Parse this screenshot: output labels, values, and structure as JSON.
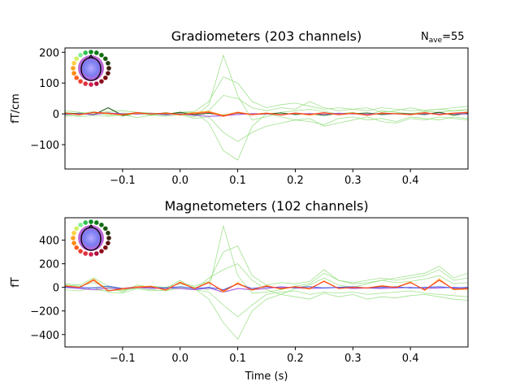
{
  "nave": {
    "label": "N",
    "sub": "ave",
    "value": "=55"
  },
  "colors": {
    "green": "#90dd7a",
    "red": "#ff3b1f",
    "orange": "#ff9a1a",
    "purple": "#a050e0",
    "darkgreen": "#1a5a10",
    "darkred": "#5a1010",
    "blue": "#4060e0"
  },
  "chart_data": [
    {
      "type": "line",
      "title": "Gradiometers (203 channels)",
      "xlabel": "",
      "ylabel": "fT/cm",
      "xlim": [
        -0.2,
        0.5
      ],
      "ylim": [
        -179,
        214
      ],
      "xticks": [
        -0.1,
        0.0,
        0.1,
        0.2,
        0.3,
        0.4
      ],
      "xtick_labels": [
        "−0.1",
        "0.0",
        "0.1",
        "0.2",
        "0.3",
        "0.4"
      ],
      "yticks": [
        -100,
        0,
        100,
        200
      ],
      "ytick_labels": [
        "−100",
        "0",
        "100",
        "200"
      ],
      "grid": false,
      "x": [
        -0.2,
        -0.175,
        -0.15,
        -0.125,
        -0.1,
        -0.075,
        -0.05,
        -0.025,
        0,
        0.025,
        0.05,
        0.075,
        0.1,
        0.125,
        0.15,
        0.175,
        0.2,
        0.225,
        0.25,
        0.275,
        0.3,
        0.325,
        0.35,
        0.375,
        0.4,
        0.425,
        0.45,
        0.475,
        0.5
      ],
      "series": [
        {
          "color": "green",
          "values": [
            5,
            0,
            8,
            -5,
            3,
            0,
            -4,
            2,
            0,
            -10,
            30,
            190,
            60,
            -20,
            -10,
            5,
            10,
            15,
            8,
            0,
            5,
            -5,
            10,
            5,
            0,
            8,
            5,
            10,
            15
          ]
        },
        {
          "color": "green",
          "values": [
            -5,
            3,
            -2,
            5,
            -8,
            2,
            0,
            -5,
            3,
            5,
            -30,
            -120,
            -150,
            -40,
            0,
            -10,
            -20,
            -25,
            -35,
            -15,
            -10,
            -20,
            -15,
            -25,
            -10,
            -15,
            -20,
            -10,
            -15
          ]
        },
        {
          "color": "green",
          "values": [
            10,
            5,
            0,
            8,
            10,
            5,
            3,
            0,
            5,
            8,
            40,
            120,
            100,
            40,
            20,
            30,
            35,
            25,
            15,
            20,
            15,
            10,
            20,
            15,
            10,
            12,
            15,
            20,
            25
          ]
        },
        {
          "color": "green",
          "values": [
            0,
            -10,
            -5,
            -8,
            -3,
            -12,
            -5,
            -8,
            -2,
            -15,
            -10,
            -60,
            -90,
            -60,
            -40,
            -30,
            -20,
            -15,
            -40,
            -30,
            -20,
            -10,
            -25,
            -30,
            -15,
            -20,
            -10,
            -15,
            -20
          ]
        },
        {
          "color": "green",
          "values": [
            -8,
            -5,
            5,
            0,
            -5,
            5,
            -3,
            5,
            -5,
            0,
            10,
            60,
            50,
            20,
            10,
            20,
            15,
            40,
            20,
            10,
            15,
            20,
            5,
            10,
            20,
            10,
            15,
            10,
            10
          ]
        },
        {
          "color": "darkgreen",
          "values": [
            0,
            2,
            -3,
            20,
            -5,
            2,
            0,
            -2,
            5,
            -3,
            2,
            -4,
            3,
            -2,
            0,
            3,
            -2,
            1,
            -5,
            2,
            0,
            3,
            -2,
            1,
            0,
            -2,
            5,
            -4,
            2
          ]
        },
        {
          "color": "purple",
          "values": [
            -2,
            1,
            -2,
            3,
            0,
            -1,
            2,
            -3,
            0,
            -5,
            -8,
            -6,
            -2,
            1,
            0,
            -2,
            1,
            0,
            -1,
            2,
            0,
            -1,
            1,
            0,
            -2,
            1,
            0,
            1,
            -1
          ]
        },
        {
          "color": "orange",
          "values": [
            2,
            -2,
            4,
            1,
            -3,
            2,
            0,
            2,
            -3,
            4,
            8,
            -5,
            6,
            -2,
            3,
            -3,
            2,
            -4,
            3,
            -2,
            3,
            -4,
            2,
            1,
            -3,
            3,
            -2,
            3,
            4
          ]
        },
        {
          "color": "red",
          "values": [
            3,
            -3,
            5,
            2,
            -2,
            4,
            -1,
            3,
            -2,
            1,
            5,
            -8,
            4,
            -3,
            2,
            -4,
            3,
            -2,
            4,
            -3,
            2,
            -5,
            3,
            0,
            -2,
            4,
            -3,
            2,
            5
          ]
        }
      ]
    },
    {
      "type": "line",
      "title": "Magnetometers (102 channels)",
      "xlabel": "Time (s)",
      "ylabel": "fT",
      "xlim": [
        -0.2,
        0.5
      ],
      "ylim": [
        -505,
        590
      ],
      "xticks": [
        -0.1,
        0.0,
        0.1,
        0.2,
        0.3,
        0.4
      ],
      "xtick_labels": [
        "−0.1",
        "0.0",
        "0.1",
        "0.2",
        "0.3",
        "0.4"
      ],
      "yticks": [
        -400,
        -200,
        0,
        200,
        400
      ],
      "ytick_labels": [
        "−400",
        "−200",
        "0",
        "200",
        "400"
      ],
      "grid": false,
      "x": [
        -0.2,
        -0.175,
        -0.15,
        -0.125,
        -0.1,
        -0.075,
        -0.05,
        -0.025,
        0,
        0.025,
        0.05,
        0.075,
        0.1,
        0.125,
        0.15,
        0.175,
        0.2,
        0.225,
        0.25,
        0.275,
        0.3,
        0.325,
        0.35,
        0.375,
        0.4,
        0.425,
        0.45,
        0.475,
        0.5
      ],
      "series": [
        {
          "color": "green",
          "values": [
            20,
            10,
            40,
            0,
            -10,
            5,
            10,
            0,
            30,
            0,
            -20,
            520,
            100,
            -50,
            -40,
            -20,
            10,
            30,
            120,
            60,
            30,
            40,
            60,
            80,
            100,
            120,
            180,
            80,
            120
          ]
        },
        {
          "color": "green",
          "values": [
            -20,
            -30,
            0,
            -40,
            -50,
            -10,
            -20,
            -30,
            0,
            -10,
            -100,
            -300,
            -440,
            -200,
            -100,
            -60,
            -80,
            -100,
            -50,
            -80,
            -60,
            -100,
            -80,
            -90,
            -70,
            -60,
            -80,
            -100,
            -110
          ]
        },
        {
          "color": "green",
          "values": [
            10,
            0,
            60,
            -20,
            -30,
            0,
            5,
            -20,
            40,
            10,
            50,
            300,
            350,
            100,
            20,
            40,
            30,
            50,
            150,
            60,
            40,
            60,
            80,
            60,
            80,
            100,
            150,
            60,
            80
          ]
        },
        {
          "color": "green",
          "values": [
            0,
            -10,
            -20,
            -30,
            -20,
            -10,
            -30,
            -20,
            -10,
            -20,
            -40,
            -150,
            -250,
            -150,
            -60,
            -40,
            -30,
            -60,
            -40,
            -50,
            -40,
            -60,
            -50,
            -40,
            -30,
            -50,
            -60,
            -70,
            -80
          ]
        },
        {
          "color": "green",
          "values": [
            30,
            20,
            80,
            10,
            -40,
            20,
            0,
            -10,
            60,
            -20,
            80,
            150,
            200,
            60,
            -20,
            -60,
            -10,
            20,
            80,
            20,
            0,
            30,
            60,
            40,
            50,
            70,
            100,
            30,
            40
          ]
        },
        {
          "color": "purple",
          "values": [
            0,
            -10,
            -20,
            -5,
            -15,
            0,
            -10,
            -5,
            -10,
            -20,
            -5,
            -40,
            -10,
            -20,
            -10,
            5,
            -5,
            -10,
            -5,
            0,
            -10,
            -5,
            -10,
            -5,
            0,
            -10,
            -5,
            0,
            -5
          ]
        },
        {
          "color": "blue",
          "values": [
            5,
            0,
            -5,
            10,
            -10,
            5,
            0,
            -5,
            5,
            -10,
            0,
            -20,
            30,
            -10,
            5,
            -5,
            0,
            5,
            -5,
            0,
            5,
            -5,
            0,
            5,
            -5,
            0,
            5,
            -5,
            0
          ]
        },
        {
          "color": "orange",
          "values": [
            15,
            0,
            70,
            -30,
            -15,
            5,
            10,
            -25,
            45,
            -10,
            45,
            -40,
            40,
            -25,
            15,
            -15,
            5,
            -15,
            55,
            -10,
            0,
            -5,
            15,
            0,
            45,
            -25,
            70,
            -20,
            -15
          ]
        },
        {
          "color": "red",
          "values": [
            10,
            0,
            60,
            -30,
            -10,
            0,
            5,
            -20,
            40,
            -10,
            40,
            -30,
            30,
            -20,
            10,
            -10,
            5,
            -10,
            50,
            -10,
            0,
            -5,
            10,
            0,
            40,
            -20,
            60,
            -15,
            -10
          ]
        }
      ]
    }
  ]
}
